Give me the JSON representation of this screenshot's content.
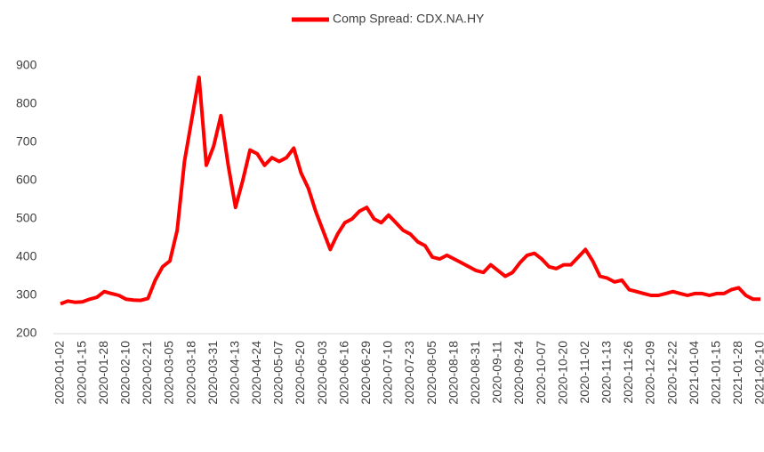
{
  "chart_data": {
    "type": "line",
    "legend": "top",
    "series": [
      {
        "name": "Comp Spread: CDX.NA.HY",
        "color": "#ff0000",
        "values": [
          278,
          285,
          282,
          283,
          290,
          295,
          310,
          305,
          300,
          290,
          288,
          287,
          292,
          340,
          375,
          390,
          470,
          650,
          760,
          870,
          640,
          690,
          770,
          640,
          530,
          600,
          680,
          670,
          640,
          660,
          650,
          660,
          685,
          620,
          580,
          520,
          470,
          420,
          460,
          490,
          500,
          520,
          530,
          500,
          490,
          510,
          490,
          470,
          460,
          440,
          430,
          400,
          395,
          405,
          395,
          385,
          375,
          365,
          360,
          380,
          365,
          350,
          360,
          385,
          405,
          410,
          395,
          375,
          370,
          380,
          380,
          400,
          420,
          390,
          350,
          345,
          335,
          340,
          315,
          310,
          305,
          300,
          300,
          305,
          310,
          305,
          300,
          305,
          305,
          300,
          305,
          305,
          315,
          320,
          300,
          290,
          290
        ]
      }
    ],
    "categories": [
      "2020-01-02",
      null,
      null,
      "2020-01-15",
      null,
      null,
      "2020-01-28",
      null,
      null,
      "2020-02-10",
      null,
      null,
      "2020-02-21",
      null,
      null,
      "2020-03-05",
      null,
      null,
      "2020-03-18",
      null,
      null,
      "2020-03-31",
      null,
      null,
      "2020-04-13",
      null,
      null,
      "2020-04-24",
      null,
      null,
      "2020-05-07",
      null,
      null,
      "2020-05-20",
      null,
      null,
      "2020-06-03",
      null,
      null,
      "2020-06-16",
      null,
      null,
      "2020-06-29",
      null,
      null,
      "2020-07-10",
      null,
      null,
      "2020-07-23",
      null,
      null,
      "2020-08-05",
      null,
      null,
      "2020-08-18",
      null,
      null,
      "2020-08-31",
      null,
      null,
      "2020-09-11",
      null,
      null,
      "2020-09-24",
      null,
      null,
      "2020-10-07",
      null,
      null,
      "2020-10-20",
      null,
      null,
      "2020-11-02",
      null,
      null,
      "2020-11-13",
      null,
      null,
      "2020-11-26",
      null,
      null,
      "2020-12-09",
      null,
      null,
      "2020-12-22",
      null,
      null,
      "2021-01-04",
      null,
      null,
      "2021-01-15",
      null,
      null,
      "2021-01-28",
      null,
      null,
      "2021-02-10"
    ],
    "ylim": [
      200,
      900
    ],
    "yticks": [
      200,
      300,
      400,
      500,
      600,
      700,
      800,
      900
    ],
    "grid": false
  }
}
